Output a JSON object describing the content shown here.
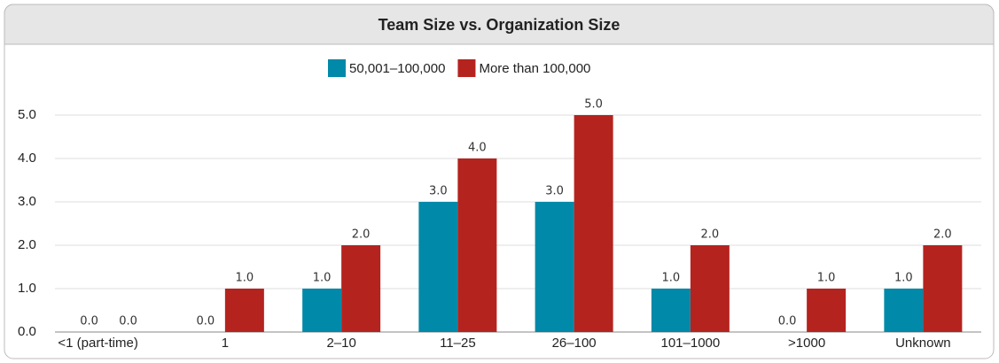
{
  "chart_data": {
    "type": "bar",
    "title": "Team Size vs. Organization Size",
    "categories": [
      "<1 (part-time)",
      "1",
      "2–10",
      "11–25",
      "26–100",
      "101–1000",
      ">1000",
      "Unknown"
    ],
    "series": [
      {
        "name": "50,001–100,000",
        "color": "#0089a8",
        "values": [
          0,
          0,
          1,
          3,
          3,
          1,
          0,
          1
        ],
        "value_labels": [
          "0.0",
          "0.0",
          "1.0",
          "3.0",
          "3.0",
          "1.0",
          "0.0",
          "1.0"
        ]
      },
      {
        "name": "More than 100,000",
        "color": "#b5231f",
        "values": [
          0,
          1,
          2,
          4,
          5,
          2,
          1,
          2
        ],
        "value_labels": [
          "0.0",
          "1.0",
          "2.0",
          "4.0",
          "5.0",
          "2.0",
          "1.0",
          "2.0"
        ]
      }
    ],
    "ylim": [
      0,
      5.3
    ],
    "yticks": [
      {
        "value": 0,
        "label": "0.0"
      },
      {
        "value": 1,
        "label": "1.0"
      },
      {
        "value": 2,
        "label": "2.0"
      },
      {
        "value": 3,
        "label": "3.0"
      },
      {
        "value": 4,
        "label": "4.0"
      },
      {
        "value": 5,
        "label": "5.0"
      }
    ],
    "grid": true,
    "legend": "top"
  }
}
